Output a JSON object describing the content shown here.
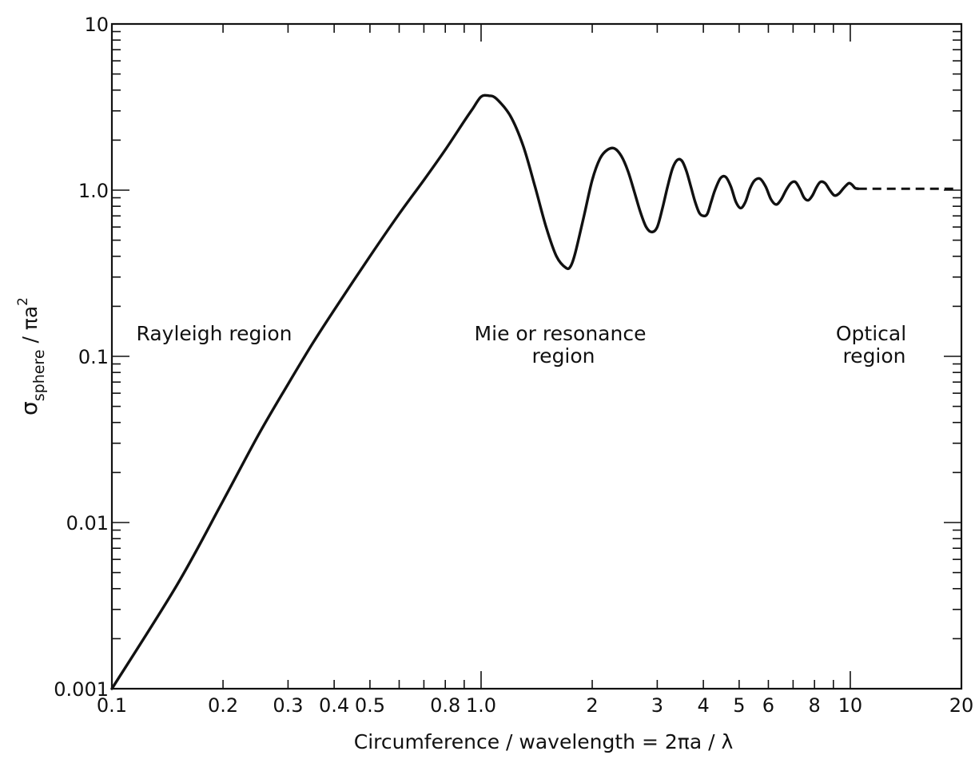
{
  "chart_data": {
    "type": "line",
    "xscale": "log",
    "yscale": "log",
    "xlim": [
      0.1,
      20
    ],
    "ylim": [
      0.001,
      10
    ],
    "xlabel": "Circumference / wavelength = 2πa / λ",
    "ylabel": {
      "main": "σ",
      "subscript": "sphere",
      "rest": " / πa",
      "superscript": "2"
    },
    "x_ticks": [
      {
        "value": 0.1,
        "label": "0.1"
      },
      {
        "value": 0.2,
        "label": "0.2"
      },
      {
        "value": 0.3,
        "label": "0.3"
      },
      {
        "value": 0.4,
        "label": "0.4"
      },
      {
        "value": 0.5,
        "label": "0.5"
      },
      {
        "value": 0.8,
        "label": "0.8"
      },
      {
        "value": 1.0,
        "label": "1.0"
      },
      {
        "value": 2,
        "label": "2"
      },
      {
        "value": 3,
        "label": "3"
      },
      {
        "value": 4,
        "label": "4"
      },
      {
        "value": 5,
        "label": "5"
      },
      {
        "value": 6,
        "label": "6"
      },
      {
        "value": 8,
        "label": "8"
      },
      {
        "value": 10,
        "label": "10"
      },
      {
        "value": 20,
        "label": "20"
      }
    ],
    "y_ticks": [
      {
        "value": 0.001,
        "label": "0.001"
      },
      {
        "value": 0.01,
        "label": "0.01"
      },
      {
        "value": 0.1,
        "label": "0.1"
      },
      {
        "value": 1.0,
        "label": "1.0"
      },
      {
        "value": 10,
        "label": "10"
      }
    ],
    "series": [
      {
        "style": "solid",
        "x": [
          0.1,
          0.15,
          0.2,
          0.25,
          0.3,
          0.35,
          0.4,
          0.5,
          0.6,
          0.7,
          0.8,
          0.9,
          0.95,
          1.0,
          1.05,
          1.1,
          1.2,
          1.3,
          1.4,
          1.5,
          1.6,
          1.7,
          1.75,
          1.8,
          1.9,
          2.0,
          2.1,
          2.2,
          2.3,
          2.4,
          2.5,
          2.6,
          2.7,
          2.8,
          2.9,
          3.0,
          3.1,
          3.2,
          3.3,
          3.4,
          3.5,
          3.6,
          3.7,
          3.8,
          3.9,
          4.0,
          4.1,
          4.2,
          4.3,
          4.45,
          4.6,
          4.75,
          4.9,
          5.05,
          5.2,
          5.35,
          5.5,
          5.7,
          5.9,
          6.1,
          6.3,
          6.5,
          6.7,
          6.9,
          7.1,
          7.3,
          7.5,
          7.7,
          7.9,
          8.1,
          8.3,
          8.55,
          8.8,
          9.05,
          9.3,
          9.6,
          9.9,
          10.1,
          10.3,
          10.5
        ],
        "y": [
          0.001,
          0.0042,
          0.0135,
          0.034,
          0.068,
          0.12,
          0.19,
          0.4,
          0.72,
          1.15,
          1.75,
          2.6,
          3.1,
          3.65,
          3.7,
          3.55,
          2.8,
          1.85,
          1.05,
          0.6,
          0.4,
          0.34,
          0.35,
          0.42,
          0.7,
          1.15,
          1.55,
          1.75,
          1.78,
          1.6,
          1.3,
          0.98,
          0.74,
          0.6,
          0.56,
          0.6,
          0.78,
          1.05,
          1.35,
          1.52,
          1.5,
          1.3,
          1.05,
          0.85,
          0.73,
          0.7,
          0.72,
          0.85,
          1.0,
          1.18,
          1.2,
          1.05,
          0.85,
          0.78,
          0.85,
          1.02,
          1.14,
          1.17,
          1.05,
          0.88,
          0.82,
          0.88,
          1.0,
          1.1,
          1.12,
          1.02,
          0.9,
          0.87,
          0.93,
          1.04,
          1.12,
          1.1,
          1.0,
          0.93,
          0.95,
          1.03,
          1.1,
          1.08,
          1.03,
          1.02
        ]
      },
      {
        "style": "dashed",
        "x": [
          10.5,
          19.4
        ],
        "y": [
          1.02,
          1.02
        ]
      }
    ],
    "annotations": [
      {
        "lines": [
          "Rayleigh region"
        ]
      },
      {
        "lines": [
          "Mie or resonance",
          "region"
        ]
      },
      {
        "lines": [
          "Optical",
          "region"
        ]
      }
    ]
  }
}
